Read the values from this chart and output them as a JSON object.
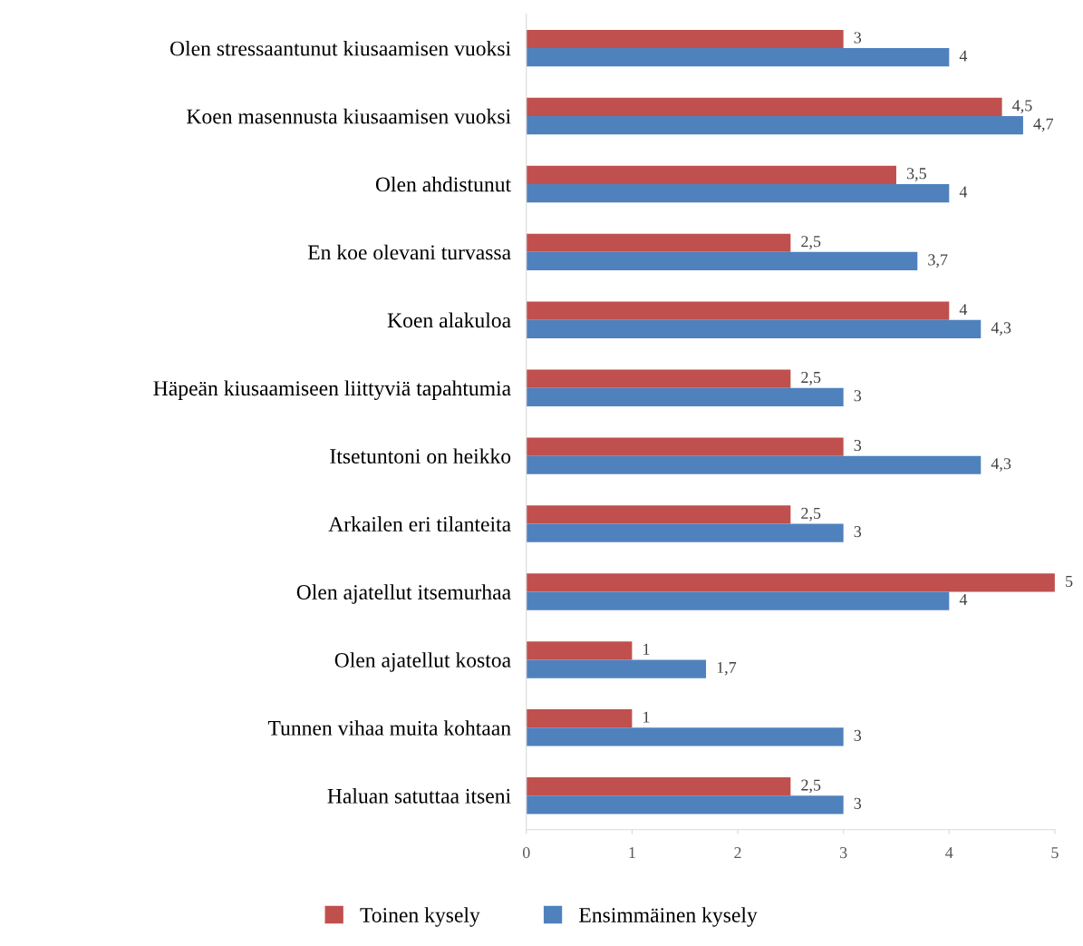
{
  "chart_data": {
    "type": "bar",
    "orientation": "horizontal",
    "categories": [
      "Olen stressaantunut kiusaamisen vuoksi",
      "Koen masennusta kiusaamisen vuoksi",
      "Olen ahdistunut",
      "En koe olevani turvassa",
      "Koen alakuloa",
      "Häpeän kiusaamiseen liittyviä tapahtumia",
      "Itsetuntoni on heikko",
      "Arkailen eri tilanteita",
      "Olen ajatellut itsemurhaa",
      "Olen ajatellut kostoa",
      "Tunnen vihaa muita kohtaan",
      "Haluan satuttaa itseni"
    ],
    "series": [
      {
        "name": "Toinen kysely",
        "color": "#c0504d",
        "values": [
          3,
          4.5,
          3.5,
          2.5,
          4,
          2.5,
          3,
          2.5,
          5,
          1,
          1,
          2.5
        ],
        "value_labels": [
          "3",
          "4,5",
          "3,5",
          "2,5",
          "4",
          "2,5",
          "3",
          "2,5",
          "5",
          "1",
          "1",
          "2,5"
        ]
      },
      {
        "name": "Ensimmäinen kysely",
        "color": "#4f81bd",
        "values": [
          4,
          4.7,
          4,
          3.7,
          4.3,
          3,
          4.3,
          3,
          4,
          1.7,
          3,
          3
        ],
        "value_labels": [
          "4",
          "4,7",
          "4",
          "3,7",
          "4,3",
          "3",
          "4,3",
          "3",
          "4",
          "1,7",
          "3",
          "3"
        ]
      }
    ],
    "xlim": [
      0,
      5
    ],
    "xticks": [
      0,
      1,
      2,
      3,
      4,
      5
    ],
    "legend": "bottom"
  }
}
